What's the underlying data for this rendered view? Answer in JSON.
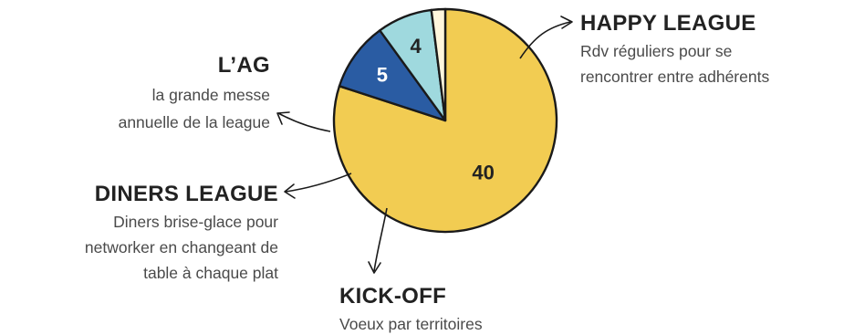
{
  "chart_data": {
    "type": "pie",
    "slices": [
      {
        "label": "HAPPY LEAGUE",
        "value": 40,
        "value_label": "40",
        "color": "#F2CC52",
        "label_color": "#222222"
      },
      {
        "label": "KICK-OFF",
        "value": 5,
        "value_label": "5",
        "color": "#2A5CA3",
        "label_color": "#ffffff"
      },
      {
        "label": "DINERS LEAGUE",
        "value": 4,
        "value_label": "4",
        "color": "#9FD9DE",
        "label_color": "#222222"
      },
      {
        "label": "L'AG",
        "value": 1,
        "value_label": "",
        "color": "#FFF6DC",
        "label_color": "#222222"
      }
    ]
  },
  "annotations": {
    "happy": {
      "title": "HAPPY LEAGUE",
      "desc": [
        "Rdv réguliers pour se",
        "rencontrer entre adhérents"
      ]
    },
    "ag": {
      "title": "L’AG",
      "desc": [
        "la grande messe",
        "annuelle de la league"
      ]
    },
    "diners": {
      "title": "DINERS LEAGUE",
      "desc": [
        "Diners brise-glace pour",
        "networker en changeant de",
        "table à chaque plat"
      ]
    },
    "kick": {
      "title": "KICK-OFF",
      "desc": [
        "Voeux par territoires"
      ]
    }
  },
  "colors": {
    "stroke": "#1a1a1a",
    "arrow": "#1a1a1a"
  }
}
